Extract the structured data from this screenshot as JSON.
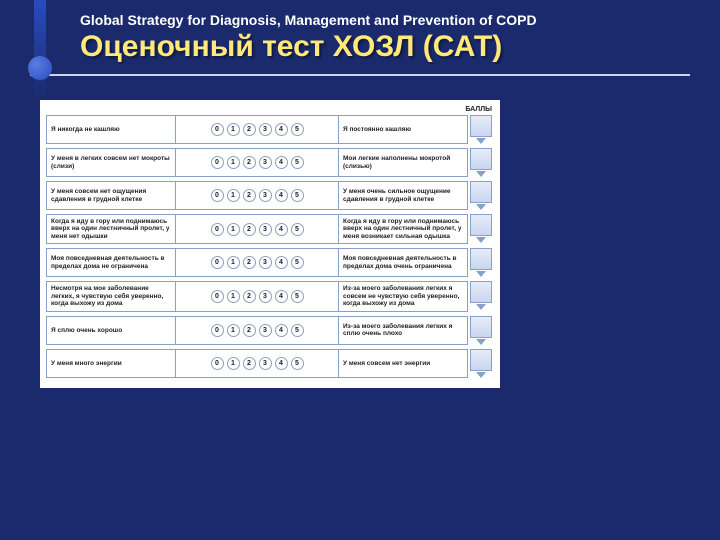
{
  "header": {
    "subtitle": "Global Strategy for Diagnosis, Management and Prevention of COPD",
    "title": "Оценочный тест ХОЗЛ (САТ)"
  },
  "scoreHeader": "БАЛЛЫ",
  "scale": [
    "0",
    "1",
    "2",
    "3",
    "4",
    "5"
  ],
  "rows": [
    {
      "left": "Я никогда не кашляю",
      "right": "Я постоянно кашляю"
    },
    {
      "left": "У меня в легких совсем нет мокроты (слизи)",
      "right": "Мои легкие наполнены мокротой (слизью)"
    },
    {
      "left": "У меня совсем нет ощущения сдавления в грудной клетке",
      "right": "У меня очень сильное ощущение сдавления в грудной клетке"
    },
    {
      "left": "Когда я иду в гору или поднимаюсь вверх на один лестничный пролет, у меня нет одышки",
      "right": "Когда я иду в гору или поднимаюсь вверх на один лестничный пролет, у меня возникает сильная одышка"
    },
    {
      "left": "Моя повседневная деятельность в пределах дома не ограничена",
      "right": "Моя повседневная деятельность в пределах дома очень ограничена"
    },
    {
      "left": "Несмотря на мое заболевание легких, я чувствую себя уверенно, когда выхожу из дома",
      "right": "Из-за моего заболевания легких я совсем не чувствую себя уверенно, когда выхожу из дома"
    },
    {
      "left": "Я сплю очень хорошо",
      "right": "Из-за моего заболевания легких я сплю очень плохо"
    },
    {
      "left": "У меня много энергии",
      "right": "У меня совсем нет энергии"
    }
  ],
  "colors": {
    "bg": "#1a2a6c",
    "titleColor": "#ffe97a",
    "border": "#8aa0c8"
  }
}
